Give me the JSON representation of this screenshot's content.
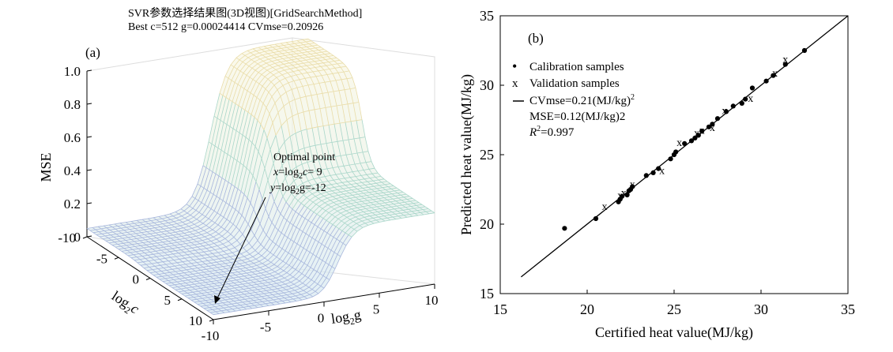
{
  "chart_data": [
    {
      "type": "surface",
      "panel_label": "(a)",
      "title": "SVR参数选择结果图(3D视图)[GridSearchMethod]",
      "subtitle": "Best c=512 g=0.00024414 CVmse=0.20926",
      "zlabel": "MSE",
      "xlabel_base": "log",
      "xlabel_sub": "2",
      "xlabel_var": "c",
      "ylabel_base": "log",
      "ylabel_sub": "2",
      "ylabel_var": "g",
      "x_ticks": [
        "-10",
        "-5",
        "0",
        "5",
        "10"
      ],
      "y_ticks": [
        "-10",
        "-5",
        "0",
        "5",
        "10"
      ],
      "z_ticks": [
        "0",
        "0.2",
        "0.4",
        "0.6",
        "0.8",
        "1.0"
      ],
      "xlim": [
        -10,
        10
      ],
      "ylim": [
        -10,
        10
      ],
      "zlim": [
        0,
        1
      ],
      "grid": true,
      "annotation": {
        "title": "Optimal point",
        "x_line": {
          "var": "x",
          "eq": "=log",
          "sub": "2",
          "arg": "c",
          "val": "= 9"
        },
        "y_line": {
          "var": "y",
          "eq": "=log",
          "sub": "2",
          "arg": "g",
          "val": "=-12"
        }
      },
      "optimal_point": {
        "log2c": 9,
        "log2g": -12
      }
    },
    {
      "type": "scatter",
      "panel_label": "(b)",
      "xlabel": "Certified heat value(MJ/kg)",
      "ylabel": "Predicted heat value(MJ/kg)",
      "xlim": [
        15,
        35
      ],
      "ylim": [
        15,
        35
      ],
      "x_ticks": [
        "15",
        "20",
        "25",
        "30",
        "35"
      ],
      "y_ticks": [
        "15",
        "20",
        "25",
        "30",
        "35"
      ],
      "legend": {
        "calibration": "Calibration samples",
        "validation": "Validation samples",
        "fit_a": "CVmse=0.21(MJ/kg)",
        "fit_a_sup": "2",
        "fit_b": "MSE=0.12(MJ/kg)2",
        "fit_c_var": "R",
        "fit_c_sup": "2",
        "fit_c_val": "=0.997"
      },
      "legend_marks": {
        "calibration": "•",
        "validation": "x"
      },
      "series": [
        {
          "name": "Calibration samples",
          "marker": "dot",
          "x": [
            18.7,
            20.5,
            21.8,
            21.9,
            22.0,
            22.3,
            22.4,
            22.5,
            22.6,
            23.4,
            23.8,
            24.1,
            24.8,
            25.0,
            25.1,
            25.6,
            26.0,
            26.2,
            26.4,
            26.6,
            27.0,
            27.2,
            27.5,
            28.0,
            28.4,
            28.9,
            29.1,
            29.5,
            30.3,
            30.7,
            31.4,
            32.5
          ],
          "y": [
            19.7,
            20.4,
            21.6,
            21.8,
            22.0,
            22.1,
            22.4,
            22.5,
            22.7,
            23.5,
            23.7,
            24.0,
            24.7,
            25.0,
            25.2,
            25.8,
            26.0,
            26.2,
            26.4,
            26.7,
            27.0,
            27.2,
            27.6,
            28.1,
            28.5,
            28.7,
            29.0,
            29.8,
            30.3,
            30.7,
            31.5,
            32.5
          ]
        },
        {
          "name": "Validation samples",
          "marker": "x",
          "x": [
            21.0,
            21.9,
            22.1,
            22.6,
            24.3,
            25.3,
            26.3,
            26.6,
            27.2,
            27.9,
            29.4,
            30.8,
            31.4
          ],
          "y": [
            21.3,
            22.1,
            22.3,
            22.9,
            23.9,
            25.9,
            26.6,
            26.8,
            27.0,
            28.2,
            29.1,
            30.9,
            31.9
          ]
        },
        {
          "name": "fit",
          "marker": "line",
          "x": [
            16.2,
            35
          ],
          "y": [
            16.2,
            35
          ]
        }
      ]
    }
  ]
}
